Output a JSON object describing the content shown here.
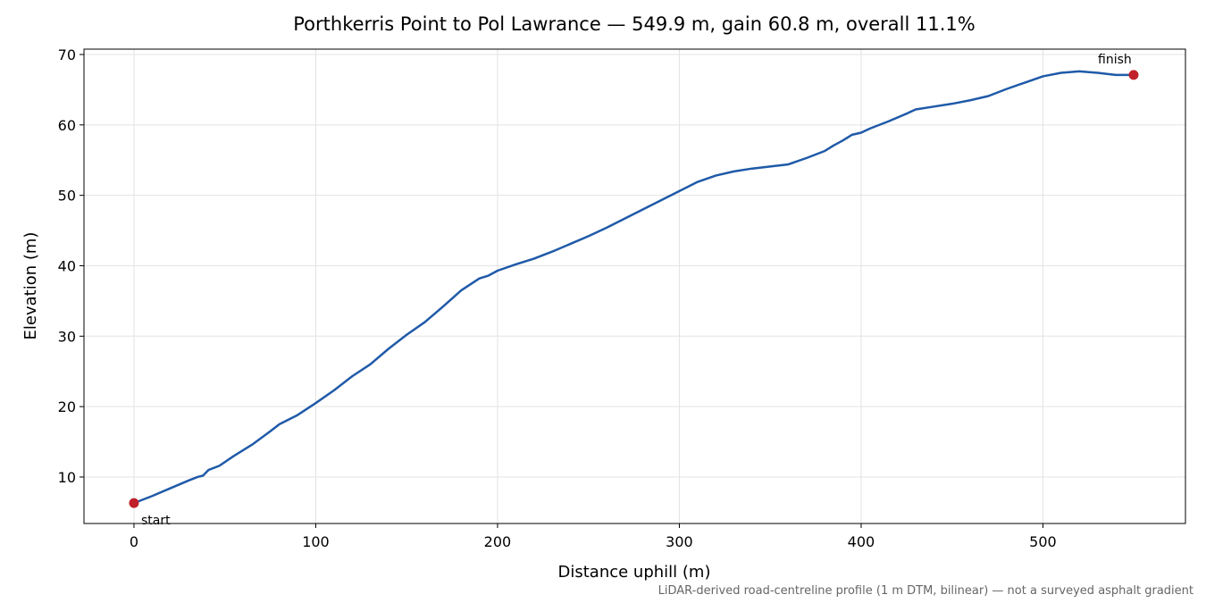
{
  "chart_data": {
    "type": "line",
    "title": "Porthkerris Point to Pol Lawrance — 549.9 m, gain 60.8 m, overall 11.1%",
    "xlabel": "Distance uphill (m)",
    "ylabel": "Elevation (m)",
    "note": "LiDAR-derived road-centreline profile (1 m DTM, bilinear) — not a surveyed asphalt gradient",
    "x": [
      0,
      10,
      20,
      30,
      35,
      38,
      41,
      47,
      55,
      65,
      75,
      80,
      90,
      100,
      110,
      120,
      130,
      140,
      150,
      160,
      170,
      180,
      190,
      195,
      200,
      210,
      220,
      230,
      240,
      250,
      260,
      270,
      280,
      290,
      300,
      310,
      320,
      330,
      340,
      350,
      360,
      370,
      380,
      385,
      390,
      395,
      400,
      405,
      415,
      425,
      430,
      440,
      450,
      460,
      470,
      480,
      490,
      500,
      510,
      520,
      530,
      540,
      549.9
    ],
    "series": [
      {
        "color": "#1f5aa8",
        "values": [
          6.3,
          7.3,
          8.4,
          9.5,
          10.0,
          10.2,
          11.0,
          11.6,
          13.0,
          14.6,
          16.5,
          17.5,
          18.8,
          20.5,
          22.3,
          24.3,
          26.0,
          28.2,
          30.2,
          32.0,
          34.2,
          36.5,
          38.2,
          38.6,
          39.3,
          40.2,
          41.0,
          42.0,
          43.1,
          44.2,
          45.4,
          46.7,
          48.0,
          49.3,
          50.6,
          51.9,
          52.8,
          53.4,
          53.8,
          54.1,
          54.4,
          55.3,
          56.3,
          57.1,
          57.8,
          58.6,
          58.9,
          59.5,
          60.5,
          61.6,
          62.2,
          62.6,
          63.0,
          63.5,
          64.1,
          65.1,
          66.0,
          66.9,
          67.4,
          67.6,
          67.4,
          67.1,
          67.1
        ]
      }
    ],
    "markers": [
      {
        "label": "start",
        "x": 0,
        "y": 6.3,
        "color": "#c0202a"
      },
      {
        "label": "finish",
        "x": 549.9,
        "y": 67.1,
        "color": "#c0202a"
      }
    ],
    "xlim": [
      -27.5,
      578.4
    ],
    "ylim": [
      3.4,
      70.76
    ],
    "xticks": [
      0,
      100,
      200,
      300,
      400,
      500
    ],
    "yticks": [
      10,
      20,
      30,
      40,
      50,
      60,
      70
    ],
    "grid": true
  }
}
